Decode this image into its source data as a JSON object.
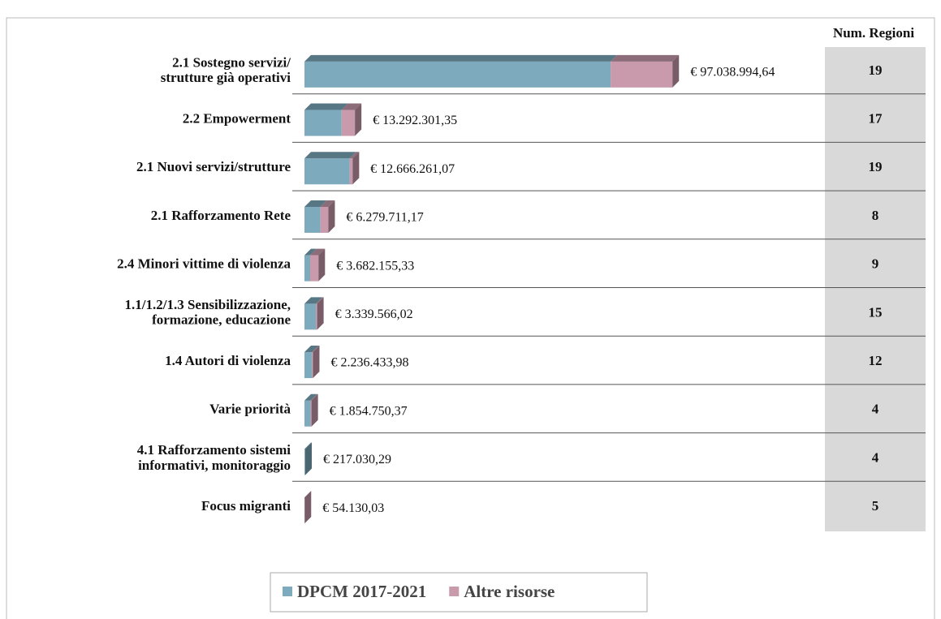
{
  "chart_data": {
    "type": "bar3d_stacked_horizontal",
    "categories": [
      "2.1 Sostegno servizi/\nstrutture già operativi",
      "2.2 Empowerment",
      "2.1 Nuovi servizi/strutture",
      "2.1 Rafforzamento Rete",
      "2.4 Minori vittime di violenza",
      "1.1/1.2/1.3 Sensibilizzazione,\nformazione, educazione",
      "1.4 Autori di violenza",
      "Varie priorità",
      "4.1 Rafforzamento sistemi\ninformativi, monitoraggio",
      "Focus migranti"
    ],
    "series": [
      {
        "name": "DPCM 2017-2021",
        "color": "#7eaabd",
        "values": [
          80700000,
          9800000,
          11900000,
          4200000,
          1500000,
          3000000,
          2000000,
          1600000,
          217030.29,
          0
        ]
      },
      {
        "name": "Altre risorse",
        "color": "#c89aab",
        "values": [
          16300000,
          3500000,
          800000,
          2100000,
          2200000,
          340000,
          240000,
          250000,
          0,
          54130.03
        ]
      }
    ],
    "totals": [
      97038994.64,
      13292301.35,
      12666261.07,
      6279711.17,
      3682155.33,
      3339566.02,
      2236433.98,
      1854750.37,
      217030.29,
      54130.03
    ],
    "total_labels": [
      "€ 97.038.994,64",
      "€ 13.292.301,35",
      "€ 12.666.261,07",
      "€ 6.279.711,17",
      "€ 3.682.155,33",
      "€ 3.339.566,02",
      "€ 2.236.433,98",
      "€ 1.854.750,37",
      "€ 217.030,29",
      "€ 54.130,03"
    ],
    "xlim": [
      0,
      110000000
    ],
    "regioni_header": "Num. Regioni",
    "regioni": [
      19,
      17,
      19,
      8,
      9,
      15,
      12,
      4,
      4,
      5
    ],
    "legend": "bottom"
  }
}
